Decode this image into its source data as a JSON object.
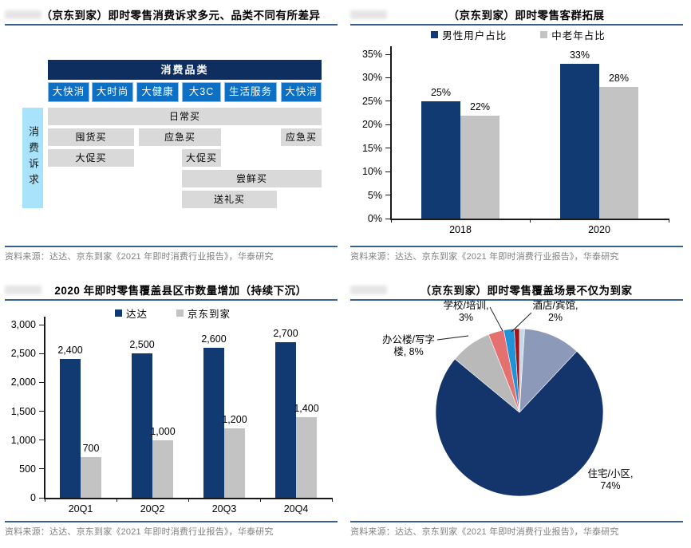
{
  "colors": {
    "bar_navy": "#123a72",
    "bar_gray": "#c3c3c3",
    "rule_blue": "#39618f",
    "source_gray": "#808080",
    "diagram_header_navy": "#0e2e60",
    "diagram_category_blue": "#0d70c5",
    "diagram_sidebar_lightblue": "#a9e2fb",
    "diagram_box_gray": "#d9d9d9"
  },
  "diagram": {
    "title": "（京东到家）即时零售消费诉求多元、品类不同有所差异",
    "source": "资料来源：达达、京东到家《2021 年即时消费行业报告》，华泰研究",
    "header": "消费品类",
    "categories": [
      "大快消",
      "大时尚",
      "大健康",
      "大3C",
      "生活服务",
      "大快消"
    ],
    "sidebar": "消费诉求",
    "rows": {
      "daily": "日常买",
      "stock": "囤货买",
      "urgent_mid": "应急买",
      "urgent_right": "应急买",
      "promo_left": "大促买",
      "promo_mid": "大促买",
      "fresh": "尝鲜买",
      "gift": "送礼买"
    }
  },
  "chart_data": [
    {
      "type": "bar",
      "title": "（京东到家）即时零售客群拓展",
      "categories": [
        "2018",
        "2020"
      ],
      "series": [
        {
          "name": "男性用户占比",
          "color": "#123a72",
          "values": [
            25,
            33
          ],
          "value_labels": [
            "25%",
            "33%"
          ]
        },
        {
          "name": "中老年占比",
          "color": "#c3c3c3",
          "values": [
            22,
            28
          ],
          "value_labels": [
            "22%",
            "28%"
          ]
        }
      ],
      "ylim": [
        0,
        35
      ],
      "ytick_labels": [
        "0%",
        "5%",
        "10%",
        "15%",
        "20%",
        "25%",
        "30%",
        "35%"
      ],
      "grid": false,
      "legend_position": "top",
      "source": "资料来源：达达、京东到家《2021 年即时消费行业报告》，华泰研究"
    },
    {
      "type": "bar",
      "title": "2020 年即时零售覆盖县区市数量增加（持续下沉）",
      "categories": [
        "20Q1",
        "20Q2",
        "20Q3",
        "20Q4"
      ],
      "series": [
        {
          "name": "达达",
          "color": "#123a72",
          "values": [
            2400,
            2500,
            2600,
            2700
          ],
          "value_labels": [
            "2,400",
            "2,500",
            "2,600",
            "2,700"
          ]
        },
        {
          "name": "京东到家",
          "color": "#c3c3c3",
          "values": [
            700,
            1000,
            1200,
            1400
          ],
          "value_labels": [
            "700",
            "1,000",
            "1,200",
            "1,400"
          ]
        }
      ],
      "ylim": [
        0,
        3000
      ],
      "ytick_labels": [
        "0",
        "500",
        "1,000",
        "1,500",
        "2,000",
        "2,500",
        "3,000"
      ],
      "grid": false,
      "legend_position": "top",
      "source": "资料来源：达达、京东到家《2021 年即时消费行业报告》，华泰研究"
    },
    {
      "type": "pie",
      "title": "（京东到家）即时零售覆盖场景不仅为到家",
      "slices": [
        {
          "value": 1,
          "color": "#c5dae8"
        },
        {
          "value": 11,
          "color": "#8d99b8"
        },
        {
          "name": "住宅/小区",
          "value": 74,
          "color": "#14356b"
        },
        {
          "name": "办公楼/写字楼",
          "value": 8,
          "color": "#b9b9b9"
        },
        {
          "name": "学校/培训",
          "value": 3,
          "color": "#e57070"
        },
        {
          "name": "酒店/宾馆",
          "value": 2,
          "color": "#2093d6"
        },
        {
          "value": 1,
          "color": "#a31218"
        }
      ],
      "labels": {
        "school": [
          "学校/培训,",
          "3%"
        ],
        "hotel": [
          "酒店/宾馆,",
          "2%"
        ],
        "office": [
          "办公楼/写字",
          "楼, 8%"
        ],
        "home": [
          "住宅/小区,",
          "74%"
        ]
      },
      "source": "资料来源：达达、京东到家《2021 年即时消费行业报告》，华泰研究"
    }
  ]
}
